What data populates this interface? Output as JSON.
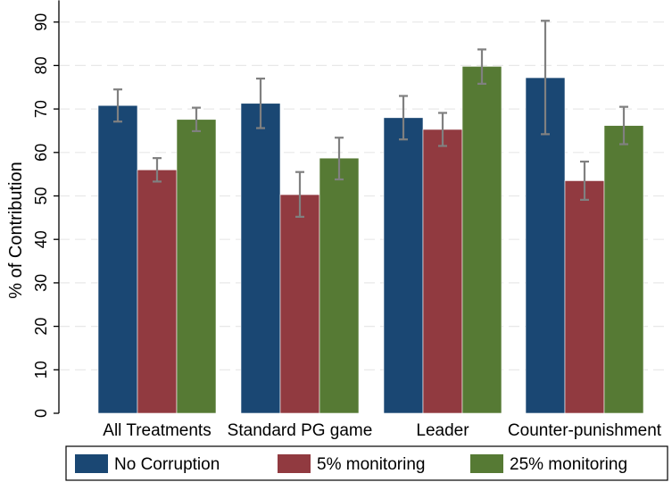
{
  "chart_data": {
    "type": "bar",
    "ylabel": "% of Contribution",
    "ylim": [
      0,
      95
    ],
    "yticks": [
      0,
      10,
      20,
      30,
      40,
      50,
      60,
      70,
      80,
      90
    ],
    "grid": true,
    "legend_position": "bottom",
    "categories": [
      "All Treatments",
      "Standard PG game",
      "Leader",
      "Counter-punishment"
    ],
    "series": [
      {
        "name": "No Corruption",
        "color": "#1a4773",
        "values": [
          70.8,
          71.3,
          68.0,
          77.2
        ],
        "error_low": [
          67.1,
          65.6,
          63.0,
          64.2
        ],
        "error_high": [
          74.5,
          77.0,
          73.0,
          90.3
        ]
      },
      {
        "name": "5% monitoring",
        "color": "#913a40",
        "values": [
          56.0,
          50.3,
          65.3,
          53.5
        ],
        "error_low": [
          53.3,
          45.2,
          61.5,
          49.1
        ],
        "error_high": [
          58.7,
          55.5,
          69.1,
          57.9
        ]
      },
      {
        "name": "25% monitoring",
        "color": "#567a34",
        "values": [
          67.6,
          58.7,
          79.8,
          66.2
        ],
        "error_low": [
          64.9,
          53.8,
          75.8,
          61.9
        ],
        "error_high": [
          70.3,
          63.4,
          83.7,
          70.5
        ]
      }
    ],
    "error_bar_color": "#808080"
  }
}
